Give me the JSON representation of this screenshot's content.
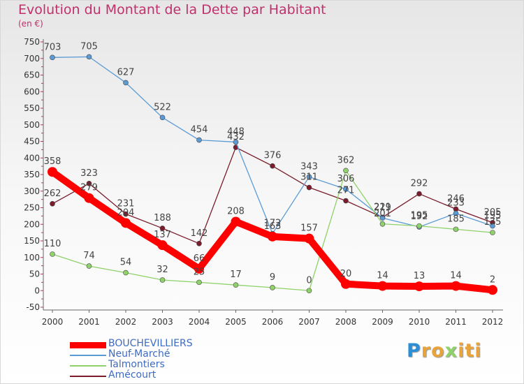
{
  "title": "Evolution du Montant de la Dette par Habitant",
  "subtitle": "(en €)",
  "logo_text": "Proxiti",
  "chart_data": {
    "type": "line",
    "title": "Evolution du Montant de la Dette par Habitant",
    "ylabel": "(en €)",
    "xlabel": "",
    "x": [
      "2000",
      "2001",
      "2002",
      "2003",
      "2004",
      "2005",
      "2006",
      "2007",
      "2008",
      "2009",
      "2010",
      "2011",
      "2012"
    ],
    "ylim": [
      -50,
      750
    ],
    "yticks": [
      -50,
      0,
      50,
      100,
      150,
      200,
      250,
      300,
      350,
      400,
      450,
      500,
      550,
      600,
      650,
      700,
      750
    ],
    "grid": false,
    "legend": "bottom-left",
    "series": [
      {
        "name": "BOUCHEVILLIERS",
        "color": "#ff0000",
        "values": [
          358,
          279,
          204,
          137,
          66,
          208,
          163,
          157,
          20,
          14,
          13,
          14,
          2
        ]
      },
      {
        "name": "Neuf-Marché",
        "color": "#5b9bd5",
        "values": [
          703,
          705,
          627,
          522,
          454,
          448,
          172,
          343,
          306,
          219,
          192,
          233,
          195
        ]
      },
      {
        "name": "Talmontiers",
        "color": "#8fd16a",
        "values": [
          110,
          74,
          54,
          32,
          25,
          17,
          9,
          0,
          362,
          201,
          195,
          185,
          175
        ]
      },
      {
        "name": "Amécourt",
        "color": "#7a1c2c",
        "values": [
          262,
          323,
          231,
          188,
          142,
          432,
          376,
          311,
          271,
          221,
          292,
          246,
          205
        ]
      }
    ]
  }
}
